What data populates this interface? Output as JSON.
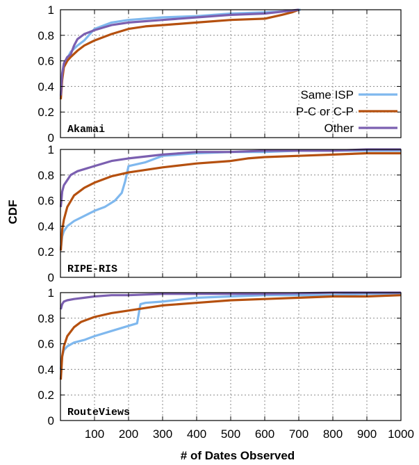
{
  "figure": {
    "ylabel": "CDF",
    "xlabel": "# of Dates Observed"
  },
  "chart_data": [
    {
      "type": "line",
      "panel": "Akamai",
      "xlim": [
        0,
        1000
      ],
      "ylim": [
        0,
        1
      ],
      "xticks": [],
      "yticks": [
        "0",
        "0.2",
        "0.4",
        "0.6",
        "0.8",
        "1"
      ],
      "grid": true,
      "legend": "bottom-right",
      "series": [
        {
          "name": "Same ISP",
          "color": "#7fb8ee",
          "x": [
            1,
            5,
            10,
            20,
            30,
            50,
            70,
            100,
            150,
            200,
            300,
            400,
            500,
            600,
            680,
            705
          ],
          "y": [
            0.32,
            0.5,
            0.57,
            0.62,
            0.67,
            0.72,
            0.76,
            0.85,
            0.9,
            0.92,
            0.94,
            0.95,
            0.97,
            0.98,
            0.99,
            1.0
          ]
        },
        {
          "name": "P-C or C-P",
          "color": "#b5500f",
          "x": [
            1,
            5,
            10,
            20,
            30,
            50,
            70,
            100,
            150,
            200,
            250,
            300,
            400,
            500,
            600,
            650,
            680,
            700
          ],
          "y": [
            0.3,
            0.45,
            0.55,
            0.6,
            0.63,
            0.68,
            0.72,
            0.76,
            0.81,
            0.85,
            0.87,
            0.88,
            0.9,
            0.92,
            0.93,
            0.96,
            0.98,
            1.0
          ]
        },
        {
          "name": "Other",
          "color": "#7b5fb0",
          "x": [
            1,
            5,
            10,
            20,
            30,
            40,
            50,
            70,
            100,
            150,
            200,
            300,
            400,
            500,
            600,
            700
          ],
          "y": [
            0.33,
            0.5,
            0.58,
            0.63,
            0.65,
            0.72,
            0.77,
            0.81,
            0.84,
            0.88,
            0.9,
            0.92,
            0.94,
            0.96,
            0.97,
            1.0
          ]
        }
      ]
    },
    {
      "type": "line",
      "panel": "RIPE-RIS",
      "xlim": [
        0,
        1000
      ],
      "ylim": [
        0,
        1
      ],
      "xticks": [],
      "yticks": [
        "0",
        "0.2",
        "0.4",
        "0.6",
        "0.8",
        "1"
      ],
      "grid": true,
      "legend": "none",
      "series": [
        {
          "name": "Same ISP",
          "color": "#7fb8ee",
          "x": [
            1,
            5,
            10,
            20,
            40,
            70,
            100,
            130,
            160,
            180,
            190,
            200,
            250,
            300,
            400,
            500,
            600,
            700,
            800,
            900,
            1000
          ],
          "y": [
            0.22,
            0.32,
            0.36,
            0.4,
            0.44,
            0.48,
            0.52,
            0.55,
            0.6,
            0.66,
            0.75,
            0.87,
            0.9,
            0.95,
            0.97,
            0.98,
            0.98,
            0.99,
            0.99,
            0.99,
            0.99
          ]
        },
        {
          "name": "P-C or C-P",
          "color": "#b5500f",
          "x": [
            1,
            5,
            10,
            20,
            40,
            70,
            100,
            150,
            200,
            300,
            400,
            500,
            550,
            600,
            700,
            800,
            900,
            1000
          ],
          "y": [
            0.21,
            0.37,
            0.45,
            0.55,
            0.64,
            0.7,
            0.74,
            0.79,
            0.82,
            0.86,
            0.89,
            0.91,
            0.93,
            0.94,
            0.95,
            0.96,
            0.97,
            0.97
          ]
        },
        {
          "name": "Other",
          "color": "#7b5fb0",
          "x": [
            1,
            5,
            10,
            20,
            30,
            50,
            100,
            150,
            200,
            300,
            400,
            500,
            600,
            700,
            800,
            900,
            1000
          ],
          "y": [
            0.55,
            0.67,
            0.72,
            0.76,
            0.8,
            0.83,
            0.87,
            0.91,
            0.93,
            0.96,
            0.98,
            0.98,
            0.99,
            0.99,
            0.99,
            1.0,
            1.0
          ]
        }
      ]
    },
    {
      "type": "line",
      "panel": "RouteViews",
      "xlim": [
        0,
        1000
      ],
      "ylim": [
        0,
        1
      ],
      "xticks": [
        "100",
        "200",
        "300",
        "400",
        "500",
        "600",
        "700",
        "800",
        "900",
        "1000"
      ],
      "yticks": [
        "0",
        "0.2",
        "0.4",
        "0.6",
        "0.8",
        "1"
      ],
      "grid": true,
      "legend": "none",
      "series": [
        {
          "name": "Same ISP",
          "color": "#7fb8ee",
          "x": [
            1,
            5,
            10,
            20,
            40,
            70,
            100,
            150,
            200,
            225,
            235,
            250,
            300,
            400,
            500,
            600,
            700,
            800,
            900,
            1000
          ],
          "y": [
            0.4,
            0.5,
            0.55,
            0.58,
            0.61,
            0.63,
            0.66,
            0.7,
            0.74,
            0.76,
            0.91,
            0.92,
            0.93,
            0.96,
            0.97,
            0.98,
            0.98,
            0.98,
            0.99,
            0.99
          ]
        },
        {
          "name": "P-C or C-P",
          "color": "#b5500f",
          "x": [
            1,
            5,
            10,
            20,
            40,
            60,
            100,
            150,
            200,
            250,
            300,
            400,
            500,
            600,
            700,
            800,
            900,
            1000
          ],
          "y": [
            0.32,
            0.5,
            0.58,
            0.66,
            0.73,
            0.77,
            0.81,
            0.84,
            0.86,
            0.88,
            0.9,
            0.92,
            0.94,
            0.95,
            0.96,
            0.97,
            0.97,
            0.98
          ]
        },
        {
          "name": "Other",
          "color": "#7b5fb0",
          "x": [
            1,
            5,
            10,
            20,
            40,
            70,
            100,
            150,
            200,
            300,
            400,
            600,
            800,
            1000
          ],
          "y": [
            0.87,
            0.91,
            0.93,
            0.94,
            0.95,
            0.96,
            0.97,
            0.98,
            0.98,
            0.99,
            0.99,
            0.99,
            1.0,
            1.0
          ]
        }
      ]
    }
  ]
}
